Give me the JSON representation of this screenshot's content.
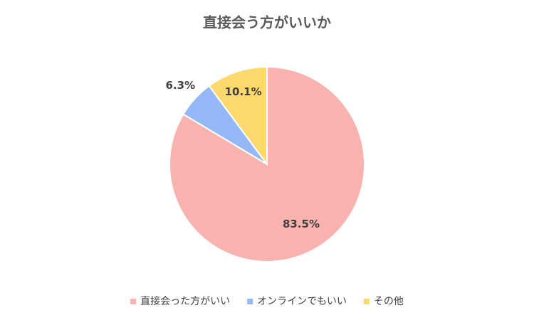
{
  "chart_data": {
    "type": "pie",
    "title": "直接会う方がいいか",
    "categories": [
      "直接会った方がいい",
      "オンラインでもいい",
      "その他"
    ],
    "values": [
      83.5,
      6.3,
      10.1
    ],
    "value_labels": [
      "83.5%",
      "6.3%",
      "10.1%"
    ],
    "colors": [
      "#f8b3ae",
      "#94b8f5",
      "#fdd86d"
    ],
    "legend": "bottom"
  }
}
